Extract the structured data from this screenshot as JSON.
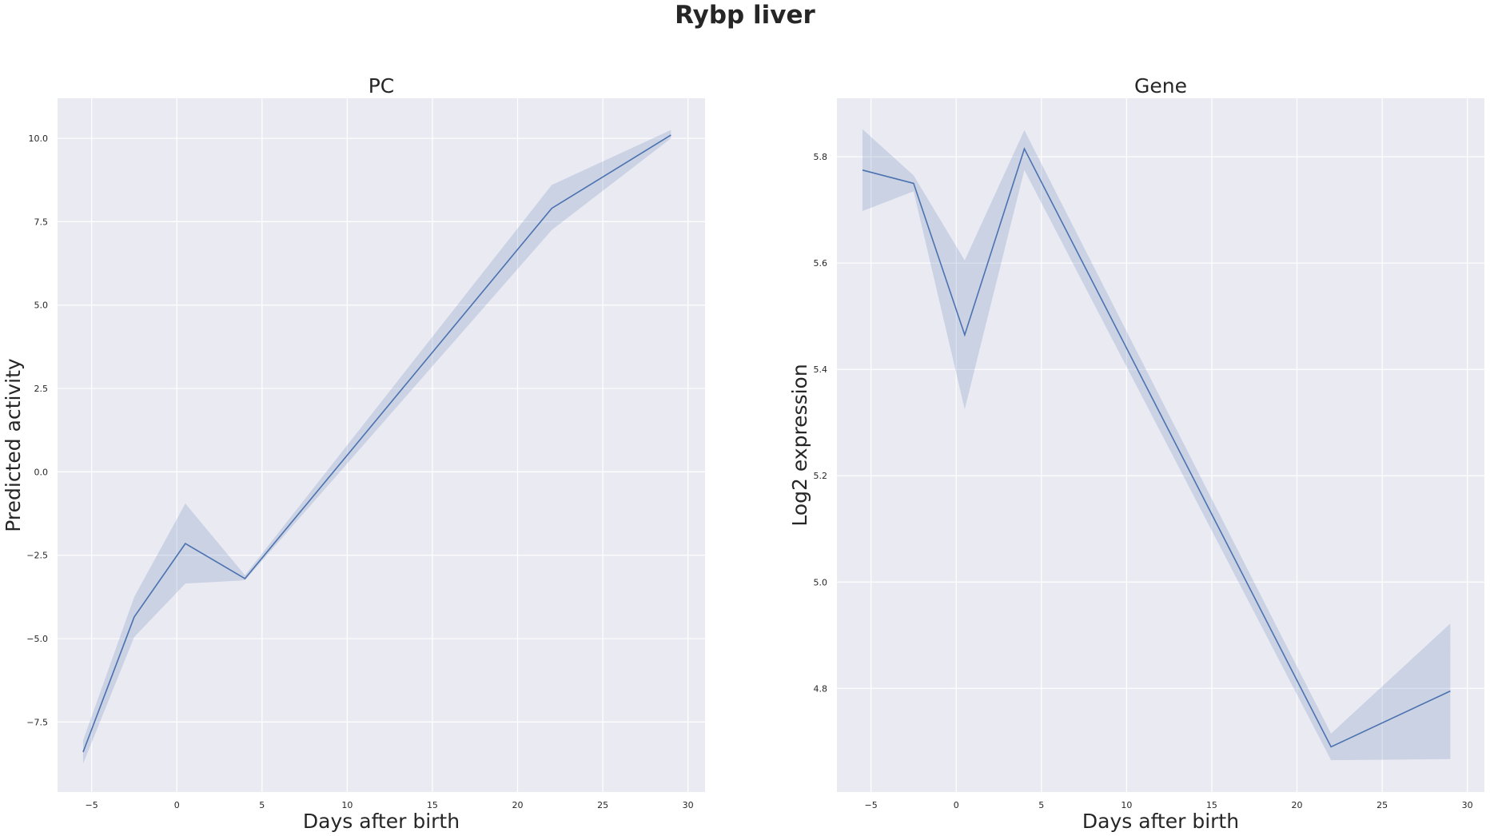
{
  "suptitle": "Rybp liver",
  "chart_data": [
    {
      "type": "line",
      "title": "PC",
      "xlabel": "Days after birth",
      "ylabel": "Predicted activity",
      "xlim": [
        -7,
        31
      ],
      "ylim": [
        -9.6,
        11.2
      ],
      "xticks": [
        -5,
        0,
        5,
        10,
        15,
        20,
        25,
        30
      ],
      "yticks": [
        -7.5,
        -5.0,
        -2.5,
        0.0,
        2.5,
        5.0,
        7.5,
        10.0
      ],
      "xtick_labels": [
        "−5",
        "0",
        "5",
        "10",
        "15",
        "20",
        "25",
        "30"
      ],
      "ytick_labels": [
        "−7.5",
        "−5.0",
        "−2.5",
        "0.0",
        "2.5",
        "5.0",
        "7.5",
        "10.0"
      ],
      "grid": true,
      "series": [
        {
          "x": [
            -5.5,
            -2.5,
            0.5,
            4,
            22,
            29
          ],
          "y": [
            -8.4,
            -4.35,
            -2.15,
            -3.2,
            7.9,
            10.1
          ],
          "ci_low": [
            -8.75,
            -4.95,
            -3.35,
            -3.25,
            7.25,
            10.0
          ],
          "ci_high": [
            -8.05,
            -3.75,
            -0.95,
            -3.1,
            8.6,
            10.25
          ],
          "color": "#4c72b0"
        }
      ]
    },
    {
      "type": "line",
      "title": "Gene",
      "xlabel": "Days after birth",
      "ylabel": "Log2 expression",
      "xlim": [
        -7,
        31
      ],
      "ylim": [
        4.605,
        5.91
      ],
      "xticks": [
        -5,
        0,
        5,
        10,
        15,
        20,
        25,
        30
      ],
      "yticks": [
        4.8,
        5.0,
        5.2,
        5.4,
        5.6,
        5.8
      ],
      "xtick_labels": [
        "−5",
        "0",
        "5",
        "10",
        "15",
        "20",
        "25",
        "30"
      ],
      "ytick_labels": [
        "4.8",
        "5.0",
        "5.2",
        "5.4",
        "5.6",
        "5.8"
      ],
      "grid": true,
      "series": [
        {
          "x": [
            -5.5,
            -2.5,
            0.5,
            4,
            22,
            29
          ],
          "y": [
            5.775,
            5.75,
            5.465,
            5.815,
            4.69,
            4.795
          ],
          "ci_low": [
            5.698,
            5.735,
            5.325,
            5.775,
            4.665,
            4.667
          ],
          "ci_high": [
            5.852,
            5.765,
            5.605,
            5.85,
            4.715,
            4.922
          ],
          "color": "#4c72b0"
        }
      ]
    }
  ]
}
